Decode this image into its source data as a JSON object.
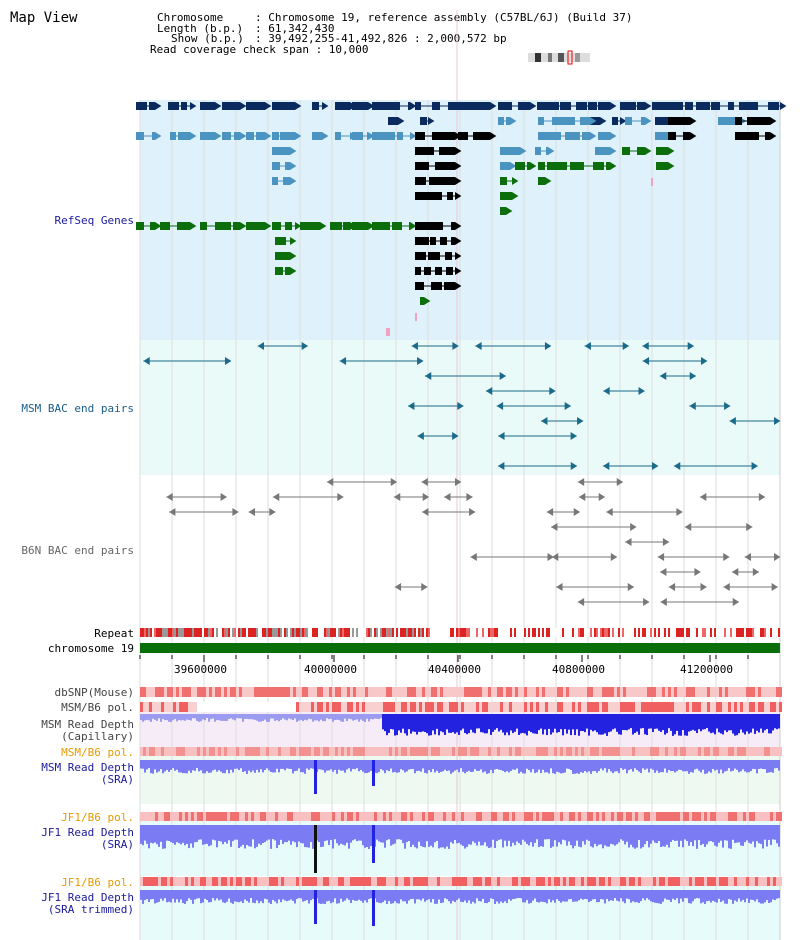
{
  "view_title": "Map View",
  "header": {
    "chromosome_key": "Chromosome",
    "chromosome_val": ": Chromosome 19, reference assembly (C57BL/6J) (Build 37)",
    "length_key": "Length (b.p.)",
    "length_val": ": 61,342,430",
    "show_key": "Show (b.p.)",
    "show_val": ": 39,492,255-41,492,826 : 2,000,572 bp",
    "coverage_line": "Read coverage check span : 10,000"
  },
  "tracks": {
    "refseq": "RefSeq Genes",
    "msm_bac": "MSM BAC end pairs",
    "b6n_bac": "B6N BAC end pairs",
    "repeat": "Repeat",
    "chromosome": "chromosome 19",
    "dbsnp": "dbSNP(Mouse)",
    "msm_b6_pol_1": "MSM/B6 pol.",
    "msm_rd_cap_1": "MSM Read Depth",
    "msm_rd_cap_2": "(Capillary)",
    "msm_b6_pol_2": "MSM/B6 pol.",
    "msm_rd_sra_1": "MSM Read Depth",
    "msm_rd_sra_2": "(SRA)",
    "jf1_b6_pol_1": "JF1/B6 pol.",
    "jf1_rd_sra_1": "JF1 Read Depth",
    "jf1_rd_sra_2": "(SRA)",
    "jf1_b6_pol_2": "JF1/B6 pol.",
    "jf1_rd_trim_1": "JF1 Read Depth",
    "jf1_rd_trim_2": "(SRA trimmed)"
  },
  "axis": {
    "ticks": [
      "39600000",
      "40000000",
      "40400000",
      "40800000",
      "41200000"
    ]
  },
  "colors": {
    "refseq_bg": "#dff1fb",
    "bac_bg": "#eafaf9",
    "dark_gene": "#0b2a5e",
    "mid_gene": "#4b93c0",
    "green_gene": "#0b6e0b",
    "chromosome_bar": "#0a6e0a",
    "depth_blue": "#7b7bf3",
    "depth_dark_blue": "#2222e0",
    "pol_label_orange": "#e89a00",
    "label_blue": "#1a1a9c"
  }
}
